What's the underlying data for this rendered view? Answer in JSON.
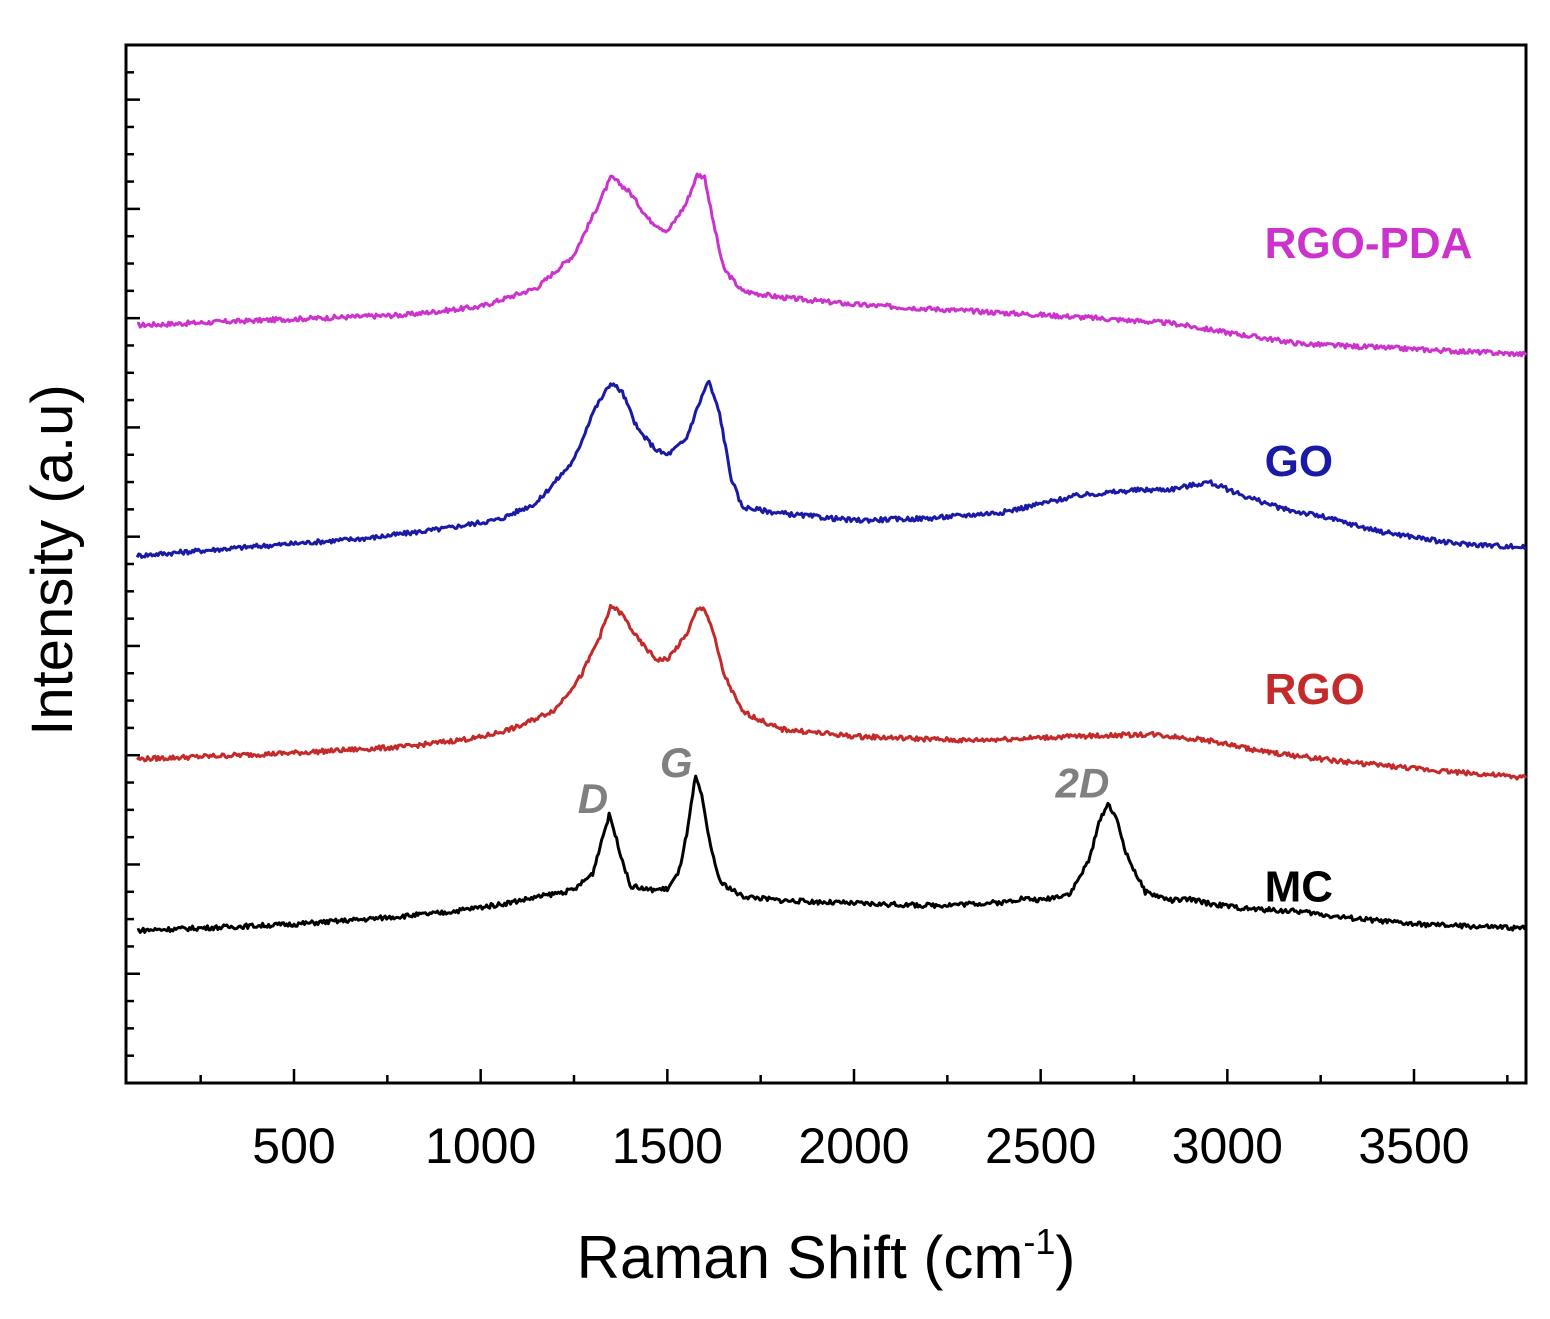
{
  "chart_data": {
    "type": "line",
    "title": "",
    "xlabel": "Raman Shift (cm",
    "xlabel_superscript": "-1",
    "xlabel_close": ")",
    "ylabel": "Intensity (a.u)",
    "xlim": [
      50,
      3800
    ],
    "ylim": [
      0,
      100
    ],
    "x_ticks": [
      500,
      1000,
      1500,
      2000,
      2500,
      3000,
      3500
    ],
    "x_tick_labels": [
      "500",
      "1000",
      "1500",
      "2000",
      "2500",
      "3000",
      "3500"
    ],
    "grid": false,
    "series": [
      {
        "name": "RGO-PDA",
        "color": "#cc33cc",
        "points": [
          [
            80,
            73.0
          ],
          [
            500,
            73.6
          ],
          [
            800,
            74.0
          ],
          [
            1000,
            74.8
          ],
          [
            1150,
            76.6
          ],
          [
            1250,
            79.8
          ],
          [
            1300,
            83.5
          ],
          [
            1350,
            87.3
          ],
          [
            1400,
            85.8
          ],
          [
            1450,
            83.2
          ],
          [
            1500,
            82.0
          ],
          [
            1550,
            84.7
          ],
          [
            1580,
            87.5
          ],
          [
            1600,
            87.3
          ],
          [
            1620,
            83.5
          ],
          [
            1650,
            78.5
          ],
          [
            1700,
            76.3
          ],
          [
            1800,
            75.7
          ],
          [
            2000,
            75.0
          ],
          [
            2300,
            74.4
          ],
          [
            2600,
            73.8
          ],
          [
            2850,
            73.2
          ],
          [
            3000,
            72.3
          ],
          [
            3200,
            71.2
          ],
          [
            3500,
            70.7
          ],
          [
            3800,
            70.2
          ]
        ]
      },
      {
        "name": "GO",
        "color": "#1a1aa6",
        "points": [
          [
            80,
            50.8
          ],
          [
            400,
            51.7
          ],
          [
            700,
            52.5
          ],
          [
            900,
            53.4
          ],
          [
            1050,
            54.3
          ],
          [
            1150,
            55.9
          ],
          [
            1250,
            60.0
          ],
          [
            1300,
            64.6
          ],
          [
            1350,
            67.5
          ],
          [
            1380,
            66.5
          ],
          [
            1420,
            63.0
          ],
          [
            1470,
            61.0
          ],
          [
            1500,
            60.5
          ],
          [
            1550,
            62.0
          ],
          [
            1580,
            65.0
          ],
          [
            1610,
            67.7
          ],
          [
            1640,
            64.5
          ],
          [
            1670,
            58.4
          ],
          [
            1700,
            55.5
          ],
          [
            1800,
            54.9
          ],
          [
            2000,
            54.2
          ],
          [
            2200,
            54.4
          ],
          [
            2400,
            55.0
          ],
          [
            2600,
            56.6
          ],
          [
            2750,
            57.1
          ],
          [
            2850,
            57.2
          ],
          [
            2950,
            57.9
          ],
          [
            3050,
            56.5
          ],
          [
            3150,
            55.3
          ],
          [
            3250,
            54.6
          ],
          [
            3400,
            53.2
          ],
          [
            3600,
            52.0
          ],
          [
            3800,
            51.6
          ]
        ]
      },
      {
        "name": "RGO",
        "color": "#c42a2a",
        "points": [
          [
            80,
            31.2
          ],
          [
            500,
            31.8
          ],
          [
            800,
            32.4
          ],
          [
            1000,
            33.3
          ],
          [
            1100,
            34.3
          ],
          [
            1200,
            36.0
          ],
          [
            1270,
            39.3
          ],
          [
            1320,
            43.1
          ],
          [
            1350,
            46.0
          ],
          [
            1380,
            45.1
          ],
          [
            1420,
            42.8
          ],
          [
            1470,
            40.8
          ],
          [
            1500,
            40.8
          ],
          [
            1550,
            43.1
          ],
          [
            1580,
            45.6
          ],
          [
            1600,
            45.7
          ],
          [
            1620,
            43.8
          ],
          [
            1650,
            39.5
          ],
          [
            1700,
            35.8
          ],
          [
            1800,
            34.1
          ],
          [
            2000,
            33.4
          ],
          [
            2300,
            33.0
          ],
          [
            2600,
            33.4
          ],
          [
            2800,
            33.6
          ],
          [
            2950,
            33.0
          ],
          [
            3100,
            31.9
          ],
          [
            3300,
            31.0
          ],
          [
            3500,
            30.3
          ],
          [
            3800,
            29.4
          ]
        ]
      },
      {
        "name": "MC",
        "color": "#000000",
        "points": [
          [
            80,
            14.7
          ],
          [
            300,
            15.0
          ],
          [
            500,
            15.3
          ],
          [
            700,
            15.8
          ],
          [
            900,
            16.4
          ],
          [
            1050,
            17.2
          ],
          [
            1150,
            17.9
          ],
          [
            1250,
            18.6
          ],
          [
            1300,
            20.2
          ],
          [
            1325,
            23.5
          ],
          [
            1345,
            25.9
          ],
          [
            1365,
            23.3
          ],
          [
            1400,
            19.0
          ],
          [
            1450,
            18.6
          ],
          [
            1500,
            18.7
          ],
          [
            1530,
            20.2
          ],
          [
            1555,
            24.5
          ],
          [
            1575,
            29.5
          ],
          [
            1590,
            28.0
          ],
          [
            1610,
            23.8
          ],
          [
            1640,
            19.4
          ],
          [
            1700,
            18.0
          ],
          [
            1800,
            17.6
          ],
          [
            2000,
            17.3
          ],
          [
            2200,
            17.1
          ],
          [
            2400,
            17.4
          ],
          [
            2450,
            17.8
          ],
          [
            2500,
            17.6
          ],
          [
            2580,
            18.3
          ],
          [
            2630,
            21.5
          ],
          [
            2660,
            25.5
          ],
          [
            2680,
            26.9
          ],
          [
            2700,
            25.8
          ],
          [
            2730,
            22.0
          ],
          [
            2780,
            18.4
          ],
          [
            2850,
            17.6
          ],
          [
            2900,
            17.7
          ],
          [
            2950,
            17.3
          ],
          [
            3050,
            16.8
          ],
          [
            3200,
            16.5
          ],
          [
            3300,
            16.0
          ],
          [
            3500,
            15.3
          ],
          [
            3800,
            14.9
          ]
        ]
      }
    ],
    "series_labels": [
      {
        "text": "RGO-PDA",
        "x": 3100,
        "y": 79.5
      },
      {
        "text": "GO",
        "x": 3100,
        "y": 58.5
      },
      {
        "text": "RGO",
        "x": 3100,
        "y": 36.5
      },
      {
        "text": "MC",
        "x": 3100,
        "y": 17.5
      }
    ],
    "peak_labels": [
      {
        "text": "D",
        "x": 1260,
        "y": 26.0
      },
      {
        "text": "G",
        "x": 1480,
        "y": 29.5
      },
      {
        "text": "2D",
        "x": 2540,
        "y": 27.5
      }
    ],
    "peak_label_color": "#808080"
  }
}
